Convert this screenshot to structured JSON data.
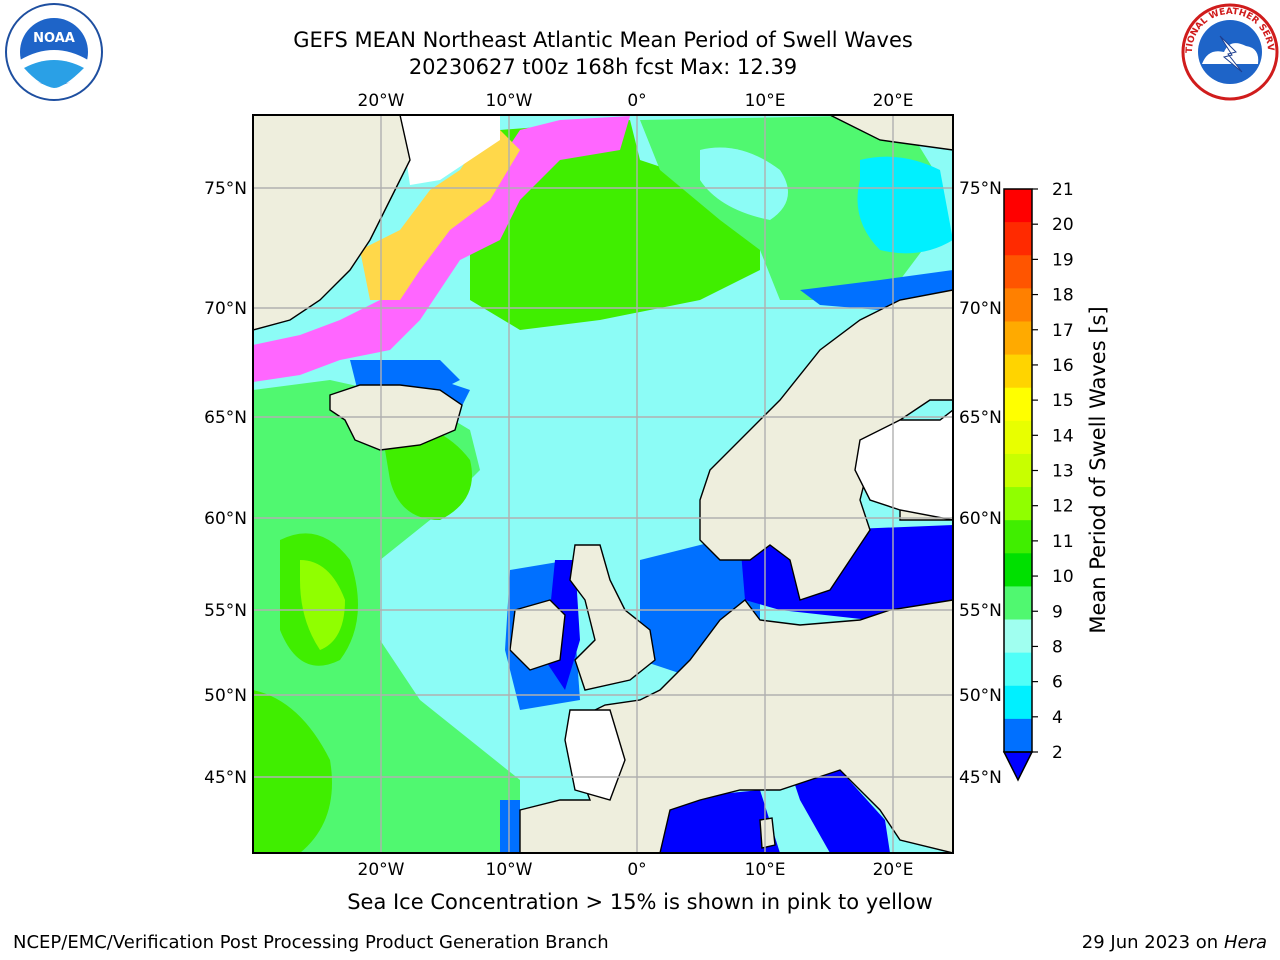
{
  "header": {
    "title_line1": "GEFS MEAN Northeast Atlantic Mean Period of Swell Waves",
    "title_line2": "20230627 t00z 168h fcst   Max: 12.39"
  },
  "logos": {
    "left": "NOAA",
    "right_text": "NATIONAL WEATHER SERVICE"
  },
  "map": {
    "lon_ticks_top": [
      "20°W",
      "10°W",
      "0°",
      "10°E",
      "20°E"
    ],
    "lon_ticks_bottom": [
      "20°W",
      "10°W",
      "0°",
      "10°E",
      "20°E"
    ],
    "lat_ticks_left": [
      "75°N",
      "70°N",
      "65°N",
      "60°N",
      "55°N",
      "50°N",
      "45°N"
    ],
    "lat_ticks_right": [
      "75°N",
      "70°N",
      "65°N",
      "60°N",
      "55°N",
      "50°N",
      "45°N"
    ]
  },
  "colorbar": {
    "label": "Mean Period of Swell Waves [s]",
    "ticks": [
      "21",
      "20",
      "19",
      "18",
      "17",
      "16",
      "15",
      "14",
      "13",
      "12",
      "11",
      "10",
      "9",
      "8",
      "6",
      "4",
      "2"
    ],
    "colors": [
      "#ff0000",
      "#ff2a00",
      "#ff5500",
      "#ff8000",
      "#ffaa00",
      "#ffd400",
      "#ffff00",
      "#e8ff00",
      "#c8ff00",
      "#90ff00",
      "#40ee00",
      "#00e000",
      "#50f870",
      "#a0fff0",
      "#50fff8",
      "#00f0ff",
      "#0070ff"
    ],
    "extend_color": "#0000ff"
  },
  "footer": {
    "sea_ice_note": "Sea Ice Concentration > 15% is shown in pink to yellow",
    "credit_left": "NCEP/EMC/Verification Post Processing Product Generation Branch",
    "credit_right_date": "29 Jun 2023 on",
    "credit_right_host": "Hera"
  },
  "colors": {
    "land": "#eeeedd",
    "grid": "#b0b0b0",
    "ice_pink": "#ff66ff",
    "ice_yellow": "#ffd84a"
  }
}
